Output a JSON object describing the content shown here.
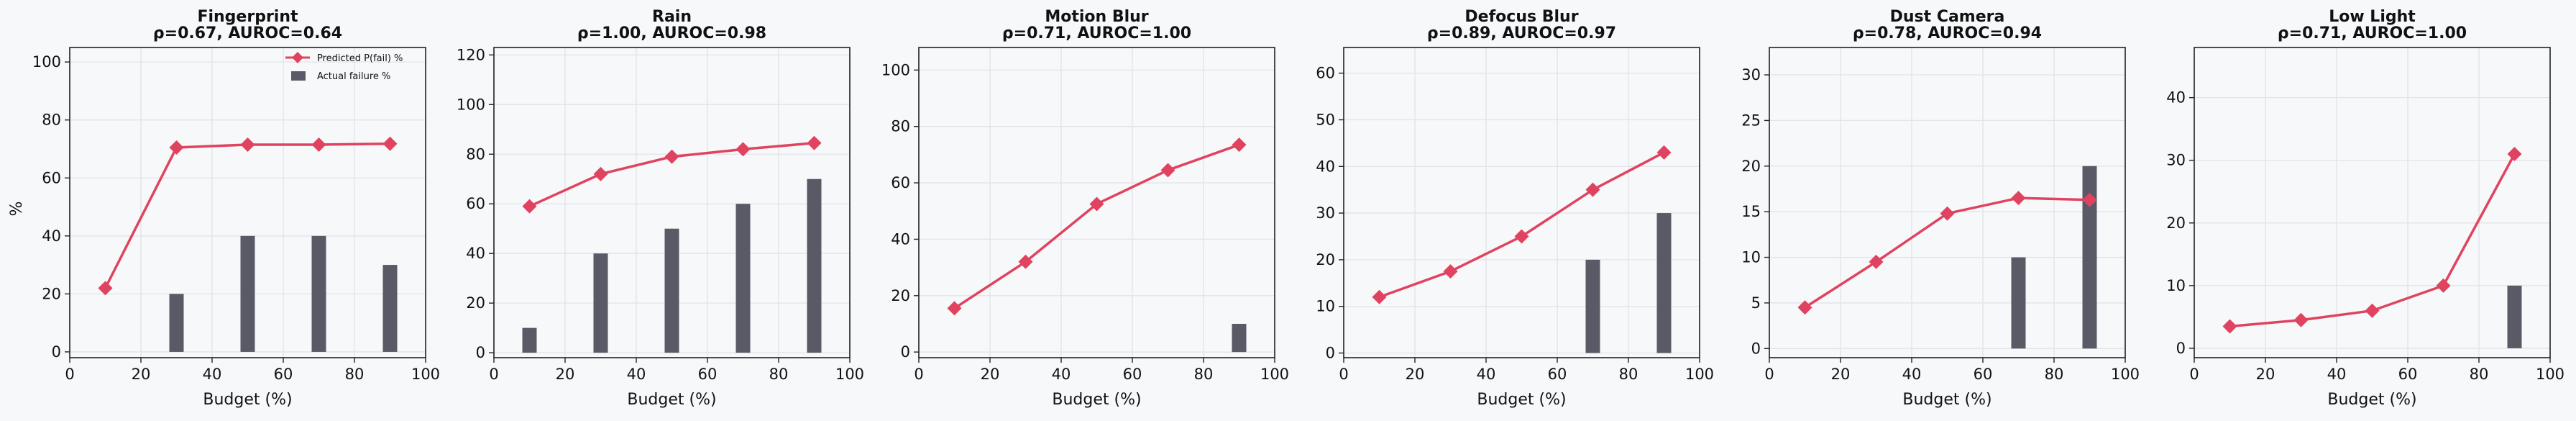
{
  "figure": {
    "background": "#f7f8fa",
    "colors": {
      "predicted": "#e0435f",
      "actual": "#5a5a66",
      "grid": "#e3e3e8",
      "axis": "#222222"
    }
  },
  "chart_data": [
    {
      "type": "bar+line",
      "title": "Fingerprint",
      "subtitle": "ρ=0.67, AUROC=0.64",
      "xlabel": "Budget (%)",
      "ylabel": "%",
      "xlim": [
        0,
        100
      ],
      "ylim": [
        -2,
        105
      ],
      "xticks": [
        0,
        20,
        40,
        60,
        80,
        100
      ],
      "yticks": [
        0,
        20,
        40,
        60,
        80,
        100
      ],
      "grid": true,
      "legend": {
        "position": "top-right",
        "entries": [
          "Predicted P(fail) %",
          "Actual failure %"
        ]
      },
      "series": [
        {
          "name": "Predicted P(fail) %",
          "type": "line",
          "marker": "diamond",
          "x": [
            10,
            30,
            50,
            70,
            90
          ],
          "values": [
            22,
            70.5,
            71.5,
            71.5,
            71.8
          ]
        },
        {
          "name": "Actual failure %",
          "type": "bar",
          "x": [
            10,
            30,
            50,
            70,
            90
          ],
          "values": [
            0,
            20,
            40,
            40,
            30
          ]
        }
      ]
    },
    {
      "type": "bar+line",
      "title": "Rain",
      "subtitle": "ρ=1.00, AUROC=0.98",
      "xlabel": "Budget (%)",
      "ylabel": "",
      "xlim": [
        0,
        100
      ],
      "ylim": [
        -2,
        123
      ],
      "xticks": [
        0,
        20,
        40,
        60,
        80,
        100
      ],
      "yticks": [
        0,
        20,
        40,
        60,
        80,
        100,
        120
      ],
      "grid": true,
      "series": [
        {
          "name": "Predicted P(fail) %",
          "type": "line",
          "marker": "diamond",
          "x": [
            10,
            30,
            50,
            70,
            90
          ],
          "values": [
            59,
            72,
            79,
            82,
            84.5
          ]
        },
        {
          "name": "Actual failure %",
          "type": "bar",
          "x": [
            10,
            30,
            50,
            70,
            90
          ],
          "values": [
            10,
            40,
            50,
            60,
            70
          ]
        }
      ]
    },
    {
      "type": "bar+line",
      "title": "Motion Blur",
      "subtitle": "ρ=0.71, AUROC=1.00",
      "xlabel": "Budget (%)",
      "ylabel": "",
      "xlim": [
        0,
        100
      ],
      "ylim": [
        -2,
        108
      ],
      "xticks": [
        0,
        20,
        40,
        60,
        80,
        100
      ],
      "yticks": [
        0,
        20,
        40,
        60,
        80,
        100
      ],
      "grid": true,
      "series": [
        {
          "name": "Predicted P(fail) %",
          "type": "line",
          "marker": "diamond",
          "x": [
            10,
            30,
            50,
            70,
            90
          ],
          "values": [
            15.5,
            32,
            52.5,
            64.5,
            73.5
          ]
        },
        {
          "name": "Actual failure %",
          "type": "bar",
          "x": [
            10,
            30,
            50,
            70,
            90
          ],
          "values": [
            0,
            0,
            0,
            0,
            10
          ]
        }
      ]
    },
    {
      "type": "bar+line",
      "title": "Defocus Blur",
      "subtitle": "ρ=0.89, AUROC=0.97",
      "xlabel": "Budget (%)",
      "ylabel": "",
      "xlim": [
        0,
        100
      ],
      "ylim": [
        -1,
        65.5
      ],
      "xticks": [
        0,
        20,
        40,
        60,
        80,
        100
      ],
      "yticks": [
        0,
        10,
        20,
        30,
        40,
        50,
        60
      ],
      "grid": true,
      "series": [
        {
          "name": "Predicted P(fail) %",
          "type": "line",
          "marker": "diamond",
          "x": [
            10,
            30,
            50,
            70,
            90
          ],
          "values": [
            12,
            17.5,
            25,
            35,
            43
          ]
        },
        {
          "name": "Actual failure %",
          "type": "bar",
          "x": [
            10,
            30,
            50,
            70,
            90
          ],
          "values": [
            0,
            0,
            0,
            20,
            30
          ]
        }
      ]
    },
    {
      "type": "bar+line",
      "title": "Dust Camera",
      "subtitle": "ρ=0.78, AUROC=0.94",
      "xlabel": "Budget (%)",
      "ylabel": "",
      "xlim": [
        0,
        100
      ],
      "ylim": [
        -1,
        33
      ],
      "xticks": [
        0,
        20,
        40,
        60,
        80,
        100
      ],
      "yticks": [
        0,
        5,
        10,
        15,
        20,
        25,
        30
      ],
      "grid": true,
      "series": [
        {
          "name": "Predicted P(fail) %",
          "type": "line",
          "marker": "diamond",
          "x": [
            10,
            30,
            50,
            70,
            90
          ],
          "values": [
            4.5,
            9.5,
            14.8,
            16.5,
            16.3
          ]
        },
        {
          "name": "Actual failure %",
          "type": "bar",
          "x": [
            10,
            30,
            50,
            70,
            90
          ],
          "values": [
            0,
            0,
            0,
            10,
            20
          ]
        }
      ]
    },
    {
      "type": "bar+line",
      "title": "Low Light",
      "subtitle": "ρ=0.71, AUROC=1.00",
      "xlabel": "Budget (%)",
      "ylabel": "",
      "xlim": [
        0,
        100
      ],
      "ylim": [
        -1.5,
        48
      ],
      "xticks": [
        0,
        20,
        40,
        60,
        80,
        100
      ],
      "yticks": [
        0,
        10,
        20,
        30,
        40
      ],
      "grid": true,
      "series": [
        {
          "name": "Predicted P(fail) %",
          "type": "line",
          "marker": "diamond",
          "x": [
            10,
            30,
            50,
            70,
            90
          ],
          "values": [
            3.5,
            4.5,
            6,
            10,
            31
          ]
        },
        {
          "name": "Actual failure %",
          "type": "bar",
          "x": [
            10,
            30,
            50,
            70,
            90
          ],
          "values": [
            0,
            0,
            0,
            0,
            10
          ]
        }
      ]
    }
  ]
}
